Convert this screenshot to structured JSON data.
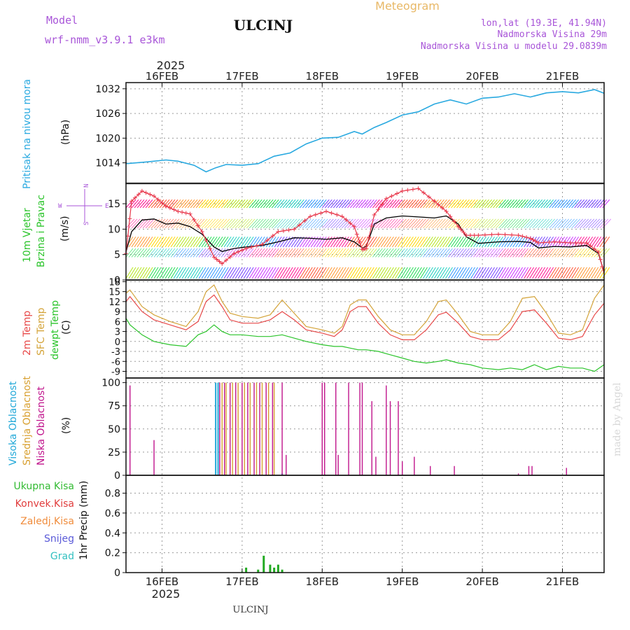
{
  "header": {
    "model_label": "Model",
    "model_name": "wrf-nmm_v3.9.1  e3km",
    "station": "ULCINJ",
    "product": "Meteogram",
    "coords": "lon,lat (19.3E, 41.94N)",
    "elev": "Nadmorska Visina 29m",
    "model_elev": "Nadmorska Visina u modelu 29.0839m",
    "footer_station": "ULCINJ",
    "credit": "made by Angel"
  },
  "colors": {
    "pressure": "#29a9e0",
    "wind_avg": "#000000",
    "gust": "#e8384c",
    "temp2m": "#e84a4a",
    "sfc": "#d4a43a",
    "dew": "#2bc42b",
    "high_cloud": "#21a8d8",
    "mid_cloud": "#d8a030",
    "low_cloud": "#c0148c",
    "precip": "#22aa22"
  },
  "time_axis": {
    "year": "2025",
    "dates": [
      "16FEB",
      "17FEB",
      "18FEB",
      "19FEB",
      "20FEB",
      "21FEB"
    ],
    "start_day": 15.55,
    "end_day": 21.52
  },
  "chart_data": [
    {
      "id": "pressure",
      "type": "line",
      "title": "Pritisak na nivou mora",
      "ylabel": "(hPa)",
      "ylim": [
        1009,
        1033.5
      ],
      "yticks": [
        1014,
        1020,
        1026,
        1032
      ],
      "series": [
        {
          "name": "Pritisak na nivou mora",
          "x": [
            15.55,
            15.8,
            16.05,
            16.2,
            16.4,
            16.55,
            16.67,
            16.8,
            17.0,
            17.2,
            17.4,
            17.6,
            17.8,
            18.0,
            18.2,
            18.4,
            18.5,
            18.65,
            18.8,
            19.0,
            19.2,
            19.4,
            19.6,
            19.8,
            20.0,
            20.2,
            20.4,
            20.6,
            20.8,
            21.0,
            21.2,
            21.4,
            21.52
          ],
          "values": [
            1013.8,
            1014.2,
            1014.7,
            1014.4,
            1013.4,
            1011.8,
            1012.8,
            1013.6,
            1013.4,
            1013.8,
            1015.6,
            1016.4,
            1018.6,
            1020.0,
            1020.2,
            1021.6,
            1021.0,
            1022.6,
            1023.8,
            1025.6,
            1026.4,
            1028.3,
            1029.3,
            1028.3,
            1029.7,
            1030.0,
            1030.8,
            1030.0,
            1031.0,
            1031.3,
            1031.0,
            1031.8,
            1030.9
          ]
        }
      ]
    },
    {
      "id": "wind",
      "type": "line",
      "title": "10m Vjetar",
      "title2": "Brzina i Pravac",
      "ylabel": "(m/s)",
      "compass": [
        "N",
        "S",
        "E",
        "W"
      ],
      "ylim": [
        0,
        19
      ],
      "yticks": [
        0,
        5,
        10,
        15
      ],
      "series": [
        {
          "name": "avg",
          "x": [
            15.55,
            15.62,
            15.75,
            15.9,
            16.05,
            16.2,
            16.35,
            16.5,
            16.65,
            16.75,
            16.9,
            17.05,
            17.25,
            17.45,
            17.65,
            17.85,
            18.05,
            18.25,
            18.4,
            18.5,
            18.55,
            18.65,
            18.8,
            19.0,
            19.2,
            19.4,
            19.55,
            19.7,
            19.8,
            19.95,
            20.2,
            20.45,
            20.6,
            20.7,
            20.9,
            21.1,
            21.3,
            21.45,
            21.52
          ],
          "values": [
            5.5,
            9.5,
            11.8,
            12.0,
            11.0,
            11.2,
            10.5,
            9.0,
            6.5,
            5.6,
            6.2,
            6.5,
            6.8,
            7.5,
            8.3,
            8.2,
            8.0,
            8.3,
            7.5,
            6.3,
            6.6,
            11.0,
            12.2,
            12.6,
            12.4,
            12.2,
            12.6,
            11.0,
            8.5,
            7.2,
            7.5,
            7.6,
            7.4,
            6.3,
            6.6,
            6.5,
            6.8,
            5.2,
            1.5
          ]
        },
        {
          "name": "gust",
          "x": [
            15.55,
            15.62,
            15.75,
            15.9,
            16.05,
            16.2,
            16.35,
            16.5,
            16.65,
            16.75,
            16.9,
            17.05,
            17.25,
            17.45,
            17.65,
            17.85,
            18.05,
            18.25,
            18.4,
            18.5,
            18.55,
            18.65,
            18.8,
            19.0,
            19.2,
            19.4,
            19.55,
            19.7,
            19.8,
            19.95,
            20.2,
            20.45,
            20.6,
            20.7,
            20.9,
            21.1,
            21.3,
            21.45,
            21.52
          ],
          "values": [
            5.2,
            15.5,
            17.5,
            16.5,
            14.5,
            13.5,
            13.0,
            9.5,
            4.5,
            3.2,
            5.2,
            6.2,
            7.0,
            9.5,
            10.0,
            12.5,
            13.5,
            12.5,
            10.5,
            6.0,
            6.2,
            12.8,
            16.0,
            17.5,
            18.0,
            15.5,
            13.5,
            10.5,
            8.8,
            8.8,
            9.0,
            8.8,
            8.2,
            7.3,
            7.5,
            7.3,
            7.3,
            5.5,
            1.2
          ]
        }
      ]
    },
    {
      "id": "temperature",
      "type": "line",
      "titles": [
        "2m Temp",
        "SFC Temp",
        "dewpt Temp"
      ],
      "ylabel": "(C)",
      "ylim": [
        -11,
        18.5
      ],
      "yticks": [
        -9,
        -6,
        -3,
        0,
        3,
        6,
        9,
        12,
        15,
        18
      ],
      "series": [
        {
          "name": "2m Temp",
          "x": [
            15.55,
            15.6,
            15.75,
            15.9,
            16.1,
            16.3,
            16.45,
            16.55,
            16.65,
            16.75,
            16.85,
            17.0,
            17.2,
            17.35,
            17.5,
            17.65,
            17.8,
            18.0,
            18.15,
            18.25,
            18.35,
            18.45,
            18.55,
            18.7,
            18.85,
            19.0,
            19.15,
            19.3,
            19.45,
            19.55,
            19.7,
            19.85,
            20.0,
            20.2,
            20.35,
            20.5,
            20.65,
            20.8,
            20.95,
            21.1,
            21.25,
            21.4,
            21.52
          ],
          "values": [
            12,
            13.5,
            9,
            6.5,
            5,
            3.5,
            6,
            12,
            14,
            10.5,
            6.5,
            5.5,
            5.5,
            6.5,
            9,
            6.5,
            3.5,
            2.5,
            1.5,
            3.5,
            9,
            10.5,
            10.5,
            5.5,
            2,
            0.5,
            0.5,
            3.5,
            8,
            8.8,
            5.5,
            1.5,
            0.5,
            0.5,
            3.5,
            9,
            9.5,
            5.5,
            1,
            0.5,
            1.5,
            8,
            11.5
          ]
        },
        {
          "name": "SFC Temp",
          "x": [
            15.55,
            15.6,
            15.75,
            15.9,
            16.1,
            16.3,
            16.45,
            16.55,
            16.65,
            16.75,
            16.85,
            17.0,
            17.2,
            17.35,
            17.5,
            17.65,
            17.8,
            18.0,
            18.15,
            18.25,
            18.35,
            18.45,
            18.55,
            18.7,
            18.85,
            19.0,
            19.15,
            19.3,
            19.45,
            19.55,
            19.7,
            19.85,
            20.0,
            20.2,
            20.35,
            20.5,
            20.65,
            20.8,
            20.95,
            21.1,
            21.25,
            21.4,
            21.52
          ],
          "values": [
            14.5,
            15.5,
            10.5,
            8,
            6,
            4.5,
            9,
            15,
            17,
            12,
            8.5,
            7.5,
            7,
            8,
            12.5,
            8.5,
            4.5,
            3.5,
            2.5,
            4.5,
            11,
            12.5,
            12.5,
            7.5,
            3.5,
            2,
            2,
            6,
            12,
            12.5,
            8,
            3,
            2,
            2,
            6,
            13,
            13.5,
            8.5,
            2.5,
            2,
            3.5,
            13,
            17
          ]
        },
        {
          "name": "dewpt Temp",
          "x": [
            15.55,
            15.6,
            15.75,
            15.9,
            16.1,
            16.3,
            16.45,
            16.55,
            16.65,
            16.75,
            16.85,
            17.0,
            17.2,
            17.35,
            17.5,
            17.65,
            17.8,
            18.0,
            18.15,
            18.25,
            18.35,
            18.45,
            18.55,
            18.7,
            18.85,
            19.0,
            19.15,
            19.3,
            19.45,
            19.55,
            19.7,
            19.85,
            20.0,
            20.2,
            20.35,
            20.5,
            20.65,
            20.8,
            20.95,
            21.1,
            21.25,
            21.4,
            21.52
          ],
          "values": [
            7,
            5,
            2,
            0,
            -1,
            -1.5,
            2,
            3,
            5,
            3,
            2,
            2,
            1.5,
            1.5,
            2,
            1,
            0,
            -1,
            -1.5,
            -1.5,
            -2,
            -2.5,
            -2.5,
            -3,
            -4,
            -5,
            -6,
            -6.5,
            -6,
            -5.5,
            -6.5,
            -7,
            -8,
            -8.5,
            -8,
            -8.5,
            -7,
            -8.5,
            -7.5,
            -8,
            -8,
            -9,
            -7
          ]
        }
      ]
    },
    {
      "id": "clouds",
      "type": "bar",
      "titles": [
        "Visoka Oblacnost",
        "Srednja Oblacnost",
        "Niska Oblacnost"
      ],
      "ylabel": "(%)",
      "ylim": [
        0,
        105
      ],
      "yticks": [
        0,
        25,
        50,
        75,
        100
      ],
      "series": [
        {
          "name": "Visoka Oblacnost",
          "x": [
            16.67,
            16.7,
            17.5
          ],
          "values": [
            100,
            100,
            2
          ]
        },
        {
          "name": "Srednja Oblacnost",
          "x": [
            16.75,
            16.8,
            16.88,
            16.95,
            17.03,
            17.1,
            17.18,
            17.25,
            17.33,
            17.4
          ],
          "values": [
            100,
            100,
            100,
            100,
            100,
            100,
            100,
            100,
            100,
            100
          ]
        },
        {
          "name": "Niska Oblacnost",
          "x": [
            15.6,
            15.9,
            16.72,
            16.78,
            16.85,
            16.92,
            17.0,
            17.07,
            17.15,
            17.22,
            17.3,
            17.38,
            17.5,
            17.55,
            18.0,
            18.03,
            18.17,
            18.2,
            18.33,
            18.47,
            18.5,
            18.62,
            18.67,
            18.8,
            18.85,
            18.95,
            19.0,
            19.15,
            19.35,
            19.65,
            20.45,
            20.58,
            20.62,
            21.05
          ],
          "values": [
            97,
            38,
            100,
            100,
            100,
            100,
            100,
            100,
            100,
            100,
            100,
            100,
            100,
            22,
            100,
            100,
            100,
            22,
            100,
            100,
            100,
            80,
            20,
            97,
            80,
            80,
            15,
            20,
            10,
            10,
            2,
            10,
            10,
            8
          ]
        }
      ]
    },
    {
      "id": "precip",
      "type": "bar",
      "legend": [
        "Ukupna Kisa",
        "Konvek.Kisa",
        "Zaledj.Kisa",
        "Snijeg",
        "Grad"
      ],
      "legend_colors": [
        "#33bb33",
        "#e03c3c",
        "#f08c3c",
        "#5a5ad8",
        "#33c0c0"
      ],
      "ylabel": "1hr Precip (mm)",
      "ylim": [
        0,
        0.98
      ],
      "yticks": [
        0,
        0.2,
        0.4,
        0.6,
        0.8
      ],
      "series": [
        {
          "name": "Ukupna Kisa",
          "x": [
            17.0,
            17.05,
            17.2,
            17.27,
            17.35,
            17.4,
            17.45,
            17.5
          ],
          "values": [
            0.01,
            0.05,
            0.03,
            0.17,
            0.08,
            0.05,
            0.08,
            0.03
          ]
        }
      ]
    }
  ]
}
